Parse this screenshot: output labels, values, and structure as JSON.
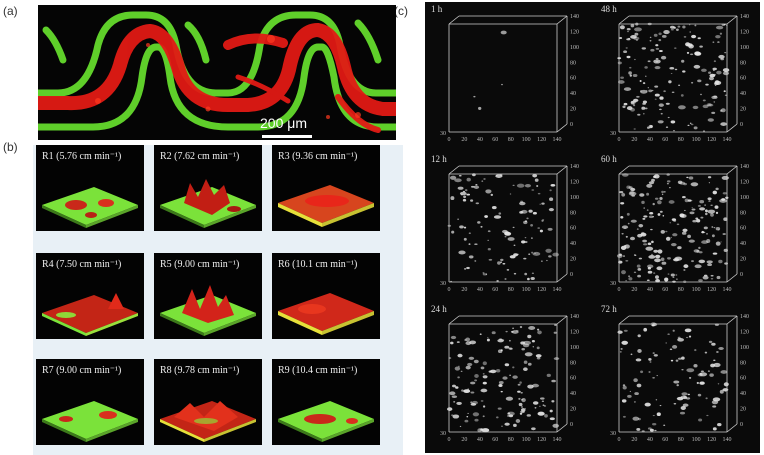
{
  "panel_labels": {
    "a": "(a)",
    "b": "(b)",
    "c": "(c)"
  },
  "panel_a": {
    "scale_bar_label": "200 μm"
  },
  "panel_b": {
    "tiles": [
      {
        "label": "R1 (5.76 cm min⁻¹)"
      },
      {
        "label": "R2 (7.62 cm min⁻¹)"
      },
      {
        "label": "R3 (9.36 cm min⁻¹)"
      },
      {
        "label": "R4 (7.50 cm min⁻¹)"
      },
      {
        "label": "R5 (9.00 cm min⁻¹)"
      },
      {
        "label": "R6 (10.1 cm min⁻¹)"
      },
      {
        "label": "R7 (9.00 cm min⁻¹)"
      },
      {
        "label": "R8 (9.78 cm min⁻¹)"
      },
      {
        "label": "R9 (10.4 cm min⁻¹)"
      }
    ]
  },
  "panel_c": {
    "times": [
      "1 h",
      "48 h",
      "12 h",
      "60 h",
      "24 h",
      "72 h"
    ],
    "axis_ticks": [
      "0",
      "20",
      "40",
      "60",
      "80",
      "100",
      "120",
      "140"
    ],
    "depth_label": "30"
  },
  "colors": {
    "green": "#7be23a",
    "red": "#e8261a",
    "yellow": "#e6e03a",
    "white_biofilm": "#e6e6e6"
  }
}
